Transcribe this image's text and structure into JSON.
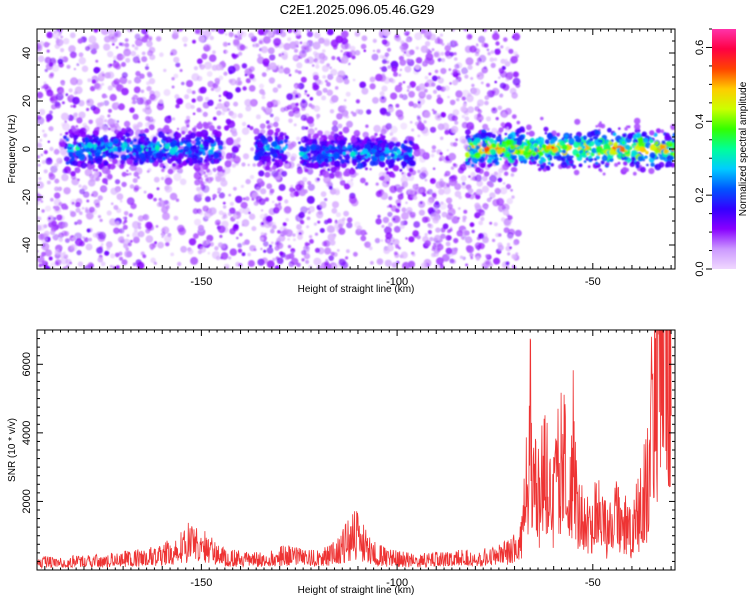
{
  "title": "C2E1.2025.096.05.46.G29",
  "chart_data": [
    {
      "type": "heatmap",
      "xlabel": "Height of straight line (km)",
      "ylabel": "Frequency (Hz)",
      "xlim": [
        -192,
        -29
      ],
      "ylim": [
        -50,
        50
      ],
      "xticks": [
        -150,
        -100,
        -50
      ],
      "yticks": [
        -40,
        -20,
        0,
        20,
        40
      ],
      "colorbar": {
        "label": "Normalized spectral amplitude",
        "range": [
          0.0,
          0.65
        ],
        "ticks": [
          0.0,
          0.2,
          0.4,
          0.6
        ],
        "colormap": [
          "#f0d8ff",
          "#cc99ff",
          "#8800ff",
          "#3300ff",
          "#0055ff",
          "#00ccff",
          "#00ff99",
          "#33ff00",
          "#ccff00",
          "#ffcc00",
          "#ff4400",
          "#ff0044",
          "#ff33aa"
        ]
      },
      "signal_band": {
        "segments": [
          {
            "x_start": -185,
            "x_end": -145,
            "center_hz": 0,
            "peak_amplitude": 0.35
          },
          {
            "x_start": -136,
            "x_end": -128,
            "center_hz": 0,
            "peak_amplitude": 0.3
          },
          {
            "x_start": -125,
            "x_end": -96,
            "center_hz": -2,
            "peak_amplitude": 0.32
          },
          {
            "x_start": -82,
            "x_end": -29,
            "center_hz": 0,
            "peak_amplitude": 0.6
          }
        ],
        "noise_floor_amplitude": 0.05
      },
      "noise_region_x": [
        -192,
        -69
      ],
      "quiet_region_x": [
        -69,
        -29
      ]
    },
    {
      "type": "line",
      "xlabel": "Height of straight line (km)",
      "ylabel": "SNR (10 * v/v)",
      "xlim": [
        -192,
        -29
      ],
      "ylim": [
        0,
        7000
      ],
      "xticks": [
        -150,
        -100,
        -50
      ],
      "yticks": [
        2000,
        4000,
        6000
      ],
      "color": "#ee3333",
      "series": [
        {
          "x": [
            -192,
            -185,
            -178,
            -172,
            -166,
            -160,
            -156,
            -153,
            -150,
            -147,
            -144,
            -140,
            -136,
            -132,
            -128,
            -124,
            -120,
            -116,
            -113,
            -111,
            -109,
            -107,
            -105,
            -102,
            -98,
            -94,
            -90,
            -86,
            -82,
            -78,
            -74,
            -71,
            -69,
            -68,
            -67,
            -66,
            -65,
            -64,
            -62,
            -60,
            -58,
            -56,
            -55,
            -54,
            -52,
            -50,
            -48,
            -46,
            -44,
            -42,
            -40,
            -38,
            -36,
            -35,
            -34,
            -33,
            -32,
            -31,
            -30
          ],
          "y": [
            200,
            200,
            220,
            260,
            300,
            380,
            520,
            700,
            620,
            450,
            320,
            280,
            260,
            300,
            380,
            320,
            280,
            420,
            680,
            900,
            760,
            520,
            380,
            300,
            260,
            240,
            260,
            280,
            300,
            330,
            380,
            450,
            600,
            1000,
            2900,
            3600,
            2200,
            1800,
            2600,
            1900,
            2700,
            2300,
            3200,
            1600,
            1000,
            1200,
            1500,
            900,
            1300,
            1100,
            900,
            1600,
            2400,
            3500,
            4300,
            5200,
            6100,
            5600,
            4500
          ]
        }
      ]
    }
  ]
}
